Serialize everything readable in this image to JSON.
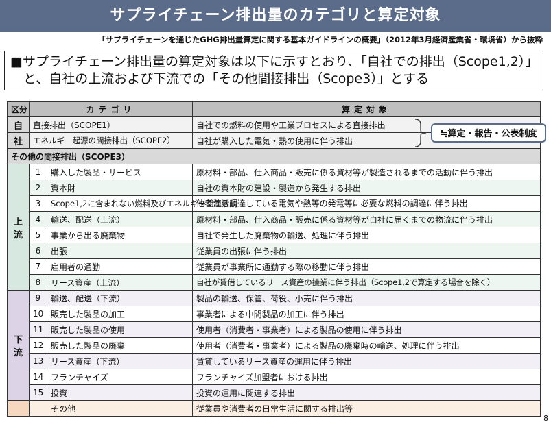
{
  "title": "サプライチェーン排出量のカテゴリと算定対象",
  "source": "「サプライチェーンを通じたGHG排出量算定に関する基本ガイドラインの概要」（2012年3月経済産業省・環境省）から抜粋",
  "lead": {
    "line1": "■サプライチェーン排出量の算定対象は以下に示すとおり、「自社での排出（Scope1,2）」",
    "line2": "　と、自社の上流および下流での「その他間接排出（Scope3）」とする"
  },
  "headers": {
    "kubun": "区分",
    "category": "カテゴリ",
    "target": "算定対象"
  },
  "own": {
    "label1": "自",
    "label2": "社",
    "rows": [
      {
        "category": "直接排出（SCOPE1）",
        "target": "自社での燃料の使用や工業プロセスによる直接排出"
      },
      {
        "category": "エネルギー起源の間接排出（SCOPE2）",
        "target": "自社が購入した電気・熱の使用に伴う排出"
      }
    ]
  },
  "callout": "≒算定・報告・公表制度",
  "scope3_label": "その他の間接排出（SCOPE3）",
  "upstream": {
    "label1": "上",
    "label2": "流",
    "rows": [
      {
        "num": "1",
        "category": "購入した製品・サービス",
        "target": "原材料・部品、仕入商品・販売に係る資材等が製造されるまでの活動に伴う排出"
      },
      {
        "num": "2",
        "category": "資本財",
        "target": "自社の資本財の建設・製造から発生する排出"
      },
      {
        "num": "3",
        "category": "Scope1,2に含まれない燃料及びエネルギー関連活動",
        "target": "他者から調達している電気や熱等の発電等に必要な燃料の調達に伴う排出"
      },
      {
        "num": "4",
        "category": "輸送、配送（上流）",
        "target": "原材料・部品、仕入商品・販売に係る資材等が自社に届くまでの物流に伴う排出"
      },
      {
        "num": "5",
        "category": "事業から出る廃棄物",
        "target": "自社で発生した廃棄物の輸送、処理に伴う排出"
      },
      {
        "num": "6",
        "category": "出張",
        "target": "従業員の出張に伴う排出"
      },
      {
        "num": "7",
        "category": "雇用者の通勤",
        "target": "従業員が事業所に通勤する際の移動に伴う排出"
      },
      {
        "num": "8",
        "category": "リース資産（上流）",
        "target": "自社が賃借しているリース資産の操業に伴う排出（Scope1,2で算定する場合を除く）"
      }
    ]
  },
  "downstream": {
    "label1": "下",
    "label2": "流",
    "rows": [
      {
        "num": "9",
        "category": "輸送、配送（下流）",
        "target": "製品の輸送、保管、荷役、小売に伴う排出"
      },
      {
        "num": "10",
        "category": "販売した製品の加工",
        "target": "事業者による中間製品の加工に伴う排出"
      },
      {
        "num": "11",
        "category": "販売した製品の使用",
        "target": "使用者（消費者・事業者）による製品の使用に伴う排出"
      },
      {
        "num": "12",
        "category": "販売した製品の廃棄",
        "target": "使用者（消費者・事業者）による製品の廃棄時の輸送、処理に伴う排出"
      },
      {
        "num": "13",
        "category": "リース資産（下流）",
        "target": "賃貸しているリース資産の運用に伴う排出"
      },
      {
        "num": "14",
        "category": "フランチャイズ",
        "target": "フランチャイズ加盟者における排出"
      },
      {
        "num": "15",
        "category": "投資",
        "target": "投資の運用に関連する排出"
      }
    ]
  },
  "other": {
    "category": "その他",
    "target": "従業員や消費者の日常生活に関する排出等"
  },
  "page_number": "8"
}
